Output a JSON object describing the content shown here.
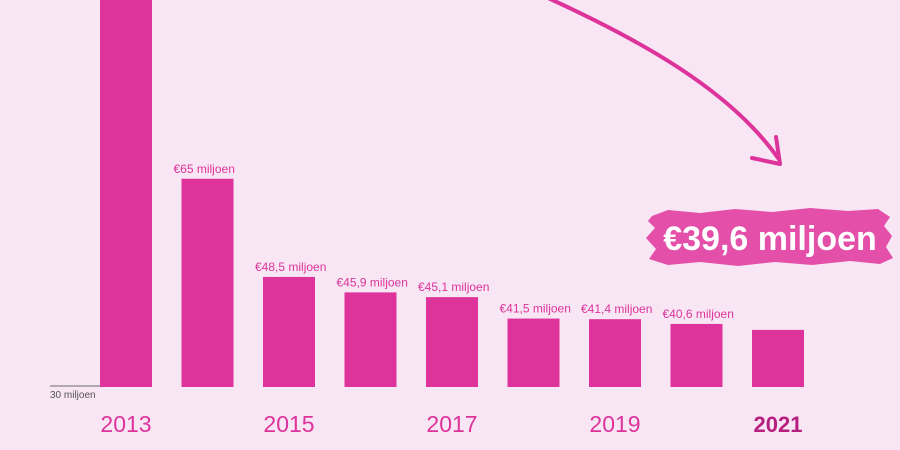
{
  "colors": {
    "background": "#f8e6f4",
    "bar": "#dd339b",
    "highlight": "#e44fa9"
  },
  "baseline_label": "30 miljoen",
  "chart_data": {
    "type": "bar",
    "categories": [
      "2013",
      "2014",
      "2015",
      "2016",
      "2017",
      "2018",
      "2019",
      "2020",
      "2021"
    ],
    "values": [
      null,
      65,
      48.5,
      45.9,
      45.1,
      41.5,
      41.4,
      40.6,
      39.6
    ],
    "value_labels": [
      "",
      "€65 miljoen",
      "€48,5 miljoen",
      "€45,9 miljoen",
      "€45,1 miljoen",
      "€41,5 miljoen",
      "€41,4 miljoen",
      "€40,6 miljoen",
      ""
    ],
    "tick_labels": [
      "2013",
      "",
      "2015",
      "",
      "2017",
      "",
      "2019",
      "",
      "2021"
    ],
    "bold_ticks": [
      "2021"
    ],
    "ylim": [
      30,
      105
    ],
    "first_bar_clipped": true,
    "grid": false,
    "legend": "none",
    "callout": {
      "text": "€39,6 miljoen",
      "category": "2021"
    }
  }
}
